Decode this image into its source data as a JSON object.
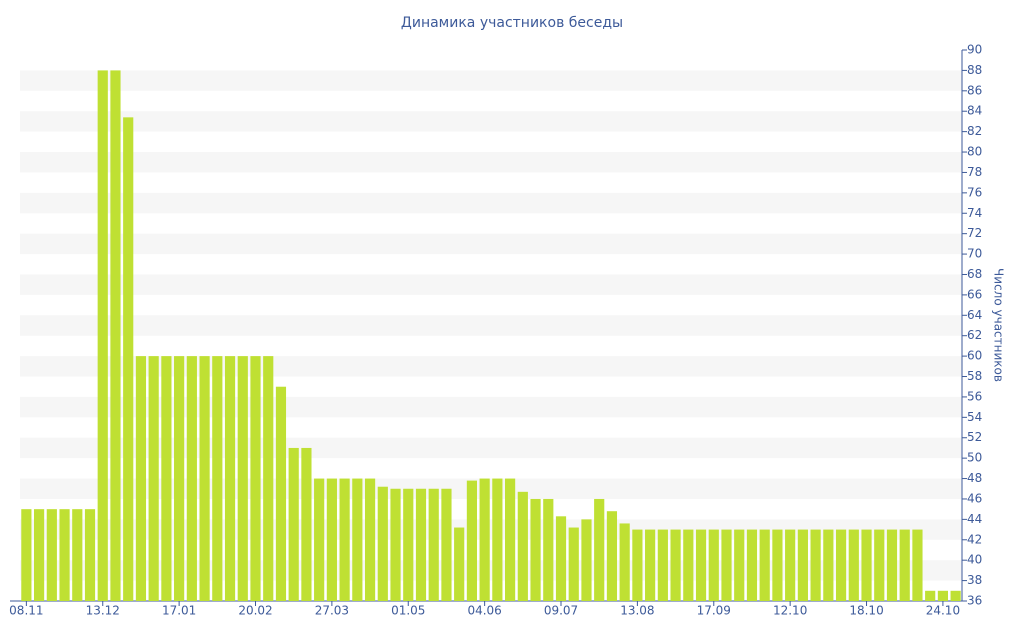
{
  "chart_data": {
    "type": "bar",
    "title": "Динамика участников беседы",
    "y_label": "Число участников",
    "categories": [
      "08.11",
      null,
      null,
      null,
      null,
      null,
      "13.12",
      null,
      null,
      null,
      null,
      null,
      "17.01",
      null,
      null,
      null,
      null,
      null,
      "20.02",
      null,
      null,
      null,
      null,
      null,
      "27.03",
      null,
      null,
      null,
      null,
      null,
      "01.05",
      null,
      null,
      null,
      null,
      null,
      "04.06",
      null,
      null,
      null,
      null,
      null,
      "09.07",
      null,
      null,
      null,
      null,
      null,
      "13.08",
      null,
      null,
      null,
      null,
      null,
      "17.09",
      null,
      null,
      null,
      null,
      null,
      "12.10",
      null,
      null,
      null,
      null,
      null,
      "18.10",
      null,
      null,
      null,
      null,
      null,
      "24.10",
      null
    ],
    "values": [
      45,
      45,
      45,
      45,
      45,
      45,
      88,
      88,
      83.4,
      60,
      60,
      60,
      60,
      60,
      60,
      60,
      60,
      60,
      60,
      60,
      57,
      51,
      51,
      48,
      48,
      48,
      48,
      48,
      47.2,
      47,
      47,
      47,
      47,
      47,
      43.2,
      47.8,
      48,
      48,
      48,
      46.7,
      46,
      46,
      44.3,
      43.2,
      44,
      46,
      44.8,
      43.6,
      43,
      43,
      43,
      43,
      43,
      43,
      43,
      43,
      43,
      43,
      43,
      43,
      43,
      43,
      43,
      43,
      43,
      43,
      43,
      43,
      43,
      43,
      43,
      37,
      37,
      37
    ],
    "color": "#bfe033",
    "ylim": [
      36,
      90
    ],
    "yticks": [
      36,
      38,
      40,
      42,
      44,
      46,
      48,
      50,
      52,
      54,
      56,
      58,
      60,
      62,
      64,
      66,
      68,
      70,
      72,
      74,
      76,
      78,
      80,
      82,
      84,
      86,
      88,
      90
    ],
    "grid": true
  }
}
